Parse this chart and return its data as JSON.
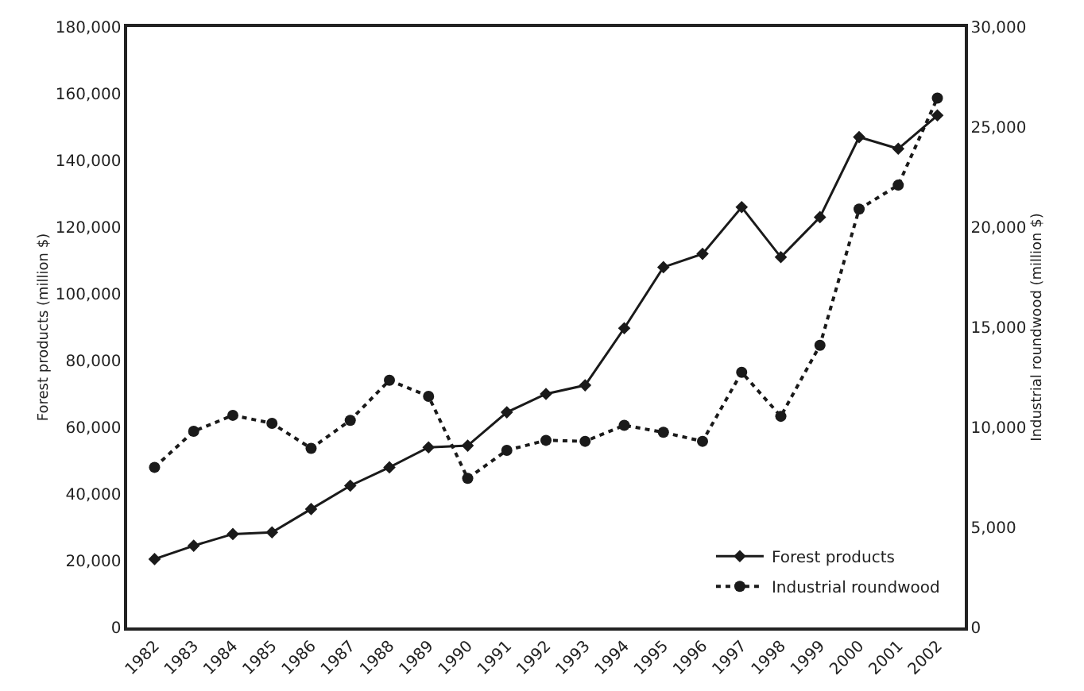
{
  "chart_data": {
    "type": "line",
    "ylabel": "Forest products (million $)",
    "y2label": "Industrial roundwood (million $)",
    "categories": [
      "1982",
      "1983",
      "1984",
      "1985",
      "1986",
      "1987",
      "1988",
      "1989",
      "1990",
      "1991",
      "1992",
      "1993",
      "1994",
      "1995",
      "1996",
      "1997",
      "1998",
      "1999",
      "2000",
      "2001",
      "2002"
    ],
    "series": [
      {
        "name": "Forest products",
        "color": "#1a1a1a",
        "marker": "diamond",
        "line_style": "solid",
        "values": [
          20500,
          24500,
          28000,
          28500,
          35500,
          42500,
          48000,
          54000,
          54500,
          64500,
          70000,
          72600,
          89700,
          108000,
          112000,
          126000,
          111000,
          123000,
          147000,
          143500,
          153500
        ]
      },
      {
        "name": "Industrial roundwood",
        "color": "#1a1a1a",
        "marker": "circle",
        "line_style": "dotted",
        "axis": "y2",
        "values": [
          8000,
          9800,
          10600,
          10200,
          8950,
          10350,
          12350,
          11550,
          7450,
          8850,
          9350,
          9300,
          10100,
          9750,
          9300,
          12750,
          10550,
          14100,
          20900,
          22100,
          26450
        ]
      }
    ],
    "ylim": [
      0,
      180000
    ],
    "yticks": [
      {
        "value": 0,
        "label": "0"
      },
      {
        "value": 20000,
        "label": "20,000"
      },
      {
        "value": 40000,
        "label": "40,000"
      },
      {
        "value": 60000,
        "label": "60,000"
      },
      {
        "value": 80000,
        "label": "80,000"
      },
      {
        "value": 100000,
        "label": "100,000"
      },
      {
        "value": 120000,
        "label": "120,000"
      },
      {
        "value": 140000,
        "label": "140,000"
      },
      {
        "value": 160000,
        "label": "160,000"
      },
      {
        "value": 180000,
        "label": "180,000"
      }
    ],
    "y2lim": [
      0,
      30000
    ],
    "y2ticks": [
      {
        "value": 0,
        "label": "0"
      },
      {
        "value": 5000,
        "label": "5,000"
      },
      {
        "value": 10000,
        "label": "10,000"
      },
      {
        "value": 15000,
        "label": "15,000"
      },
      {
        "value": 20000,
        "label": "20,000"
      },
      {
        "value": 25000,
        "label": "25,000"
      },
      {
        "value": 30000,
        "label": "30,000"
      }
    ],
    "grid": false,
    "legend": "bottom right"
  }
}
